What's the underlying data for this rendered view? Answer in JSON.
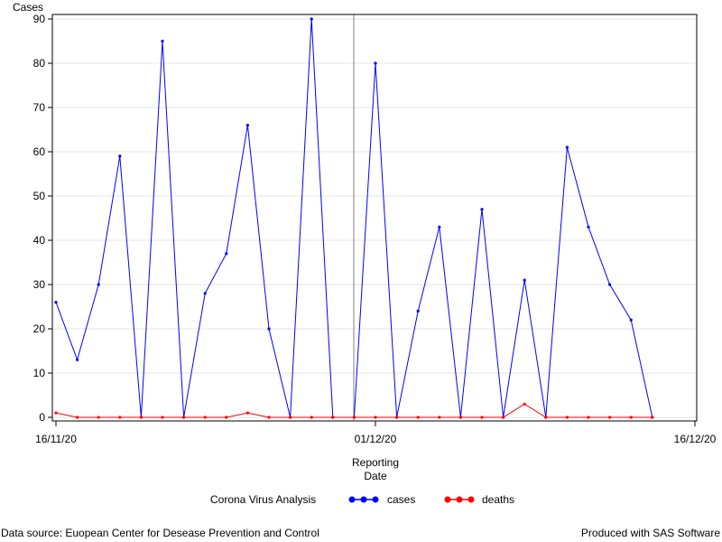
{
  "chart_data": {
    "type": "line",
    "ylabel": "Cases",
    "xlabel_line1": "Reporting",
    "xlabel_line2": "Date",
    "x_ticks": [
      "16/11/20",
      "01/12/20",
      "16/12/20"
    ],
    "y_ticks": [
      0,
      10,
      20,
      30,
      40,
      50,
      60,
      70,
      80,
      90
    ],
    "ylim": [
      0,
      90
    ],
    "xlim": [
      "16/11/20",
      "16/12/20"
    ],
    "reference_line_x": "01/12/20",
    "grid": true,
    "legend_title": "Corona Virus Analysis",
    "legend_position": "bottom",
    "x": [
      "16/11/20",
      "17/11/20",
      "18/11/20",
      "19/11/20",
      "20/11/20",
      "21/11/20",
      "22/11/20",
      "23/11/20",
      "24/11/20",
      "25/11/20",
      "26/11/20",
      "27/11/20",
      "28/11/20",
      "29/11/20",
      "30/11/20",
      "01/12/20",
      "02/12/20",
      "03/12/20",
      "04/12/20",
      "05/12/20",
      "06/12/20",
      "07/12/20",
      "08/12/20",
      "09/12/20",
      "10/12/20",
      "11/12/20",
      "12/12/20",
      "13/12/20",
      "14/12/20",
      "15/12/20"
    ],
    "series": [
      {
        "name": "cases",
        "color": "#0000ff",
        "values": [
          26,
          13,
          30,
          59,
          0,
          85,
          0,
          28,
          37,
          66,
          20,
          0,
          90,
          0,
          0,
          80,
          0,
          24,
          43,
          0,
          47,
          0,
          31,
          0,
          61,
          43,
          30,
          22,
          0,
          null
        ]
      },
      {
        "name": "deaths",
        "color": "#ff0000",
        "values": [
          1,
          0,
          0,
          0,
          0,
          0,
          0,
          0,
          0,
          1,
          0,
          0,
          0,
          0,
          0,
          0,
          0,
          0,
          0,
          0,
          0,
          0,
          3,
          0,
          0,
          0,
          0,
          0,
          0,
          null
        ]
      }
    ]
  },
  "footer": {
    "source": "Data source: Euopean Center for Desease Prevention and Control",
    "produced": "Produced with SAS Software"
  }
}
